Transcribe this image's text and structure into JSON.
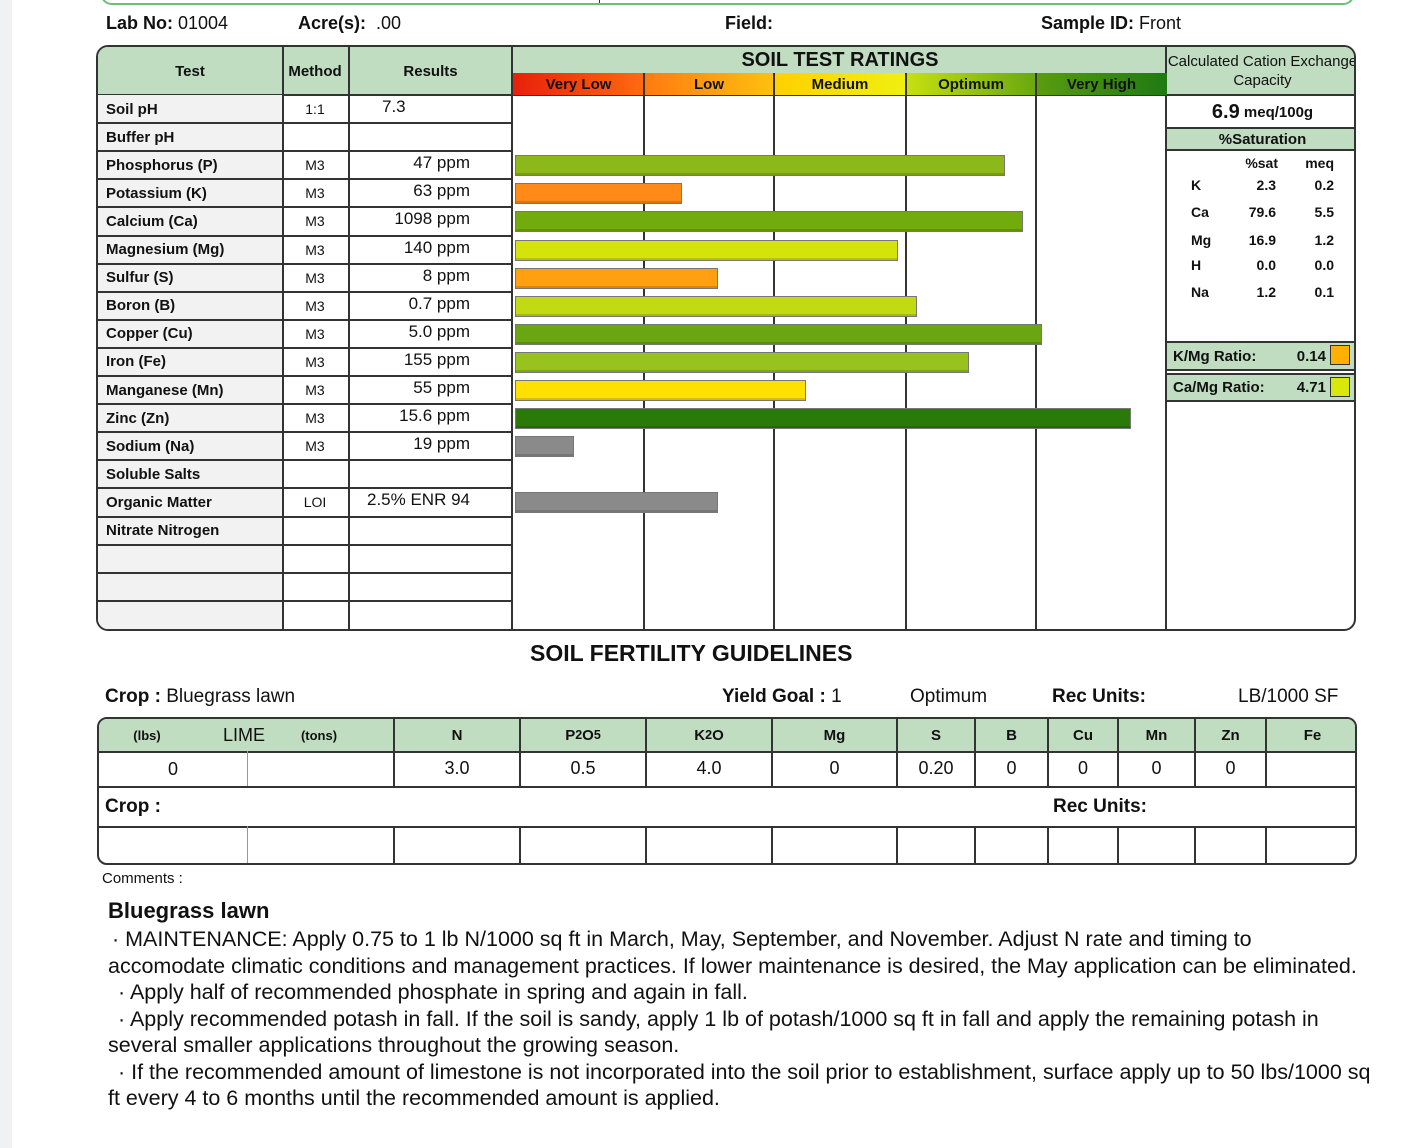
{
  "header": {
    "lab_no_label": "Lab No:",
    "lab_no": "01004",
    "acres_label": "Acre(s):",
    "acres": ".00",
    "field_label": "Field:",
    "field": "",
    "sample_label": "Sample ID:",
    "sample": "Front"
  },
  "table": {
    "col_test": "Test",
    "col_method": "Method",
    "col_results": "Results",
    "ratings_title": "SOIL TEST RATINGS",
    "scale": [
      "Very Low",
      "Low",
      "Medium",
      "Optimum",
      "Very High"
    ],
    "rows": [
      {
        "test": "Soil pH",
        "method": "1:1",
        "result": "7.3"
      },
      {
        "test": "Buffer pH",
        "method": "",
        "result": ""
      },
      {
        "test": "Phosphorus (P)",
        "method": "M3",
        "result": "47 ppm",
        "level": 0.752,
        "color": "#8cb81a"
      },
      {
        "test": "Potassium (K)",
        "method": "M3",
        "result": "63 ppm",
        "level": 0.256,
        "color": "#ff8a18"
      },
      {
        "test": "Calcium (Ca)",
        "method": "M3",
        "result": "1098 ppm",
        "level": 0.779,
        "color": "#72ab0e"
      },
      {
        "test": "Magnesium (Mg)",
        "method": "M3",
        "result": "140 ppm",
        "level": 0.587,
        "color": "#d4e40a"
      },
      {
        "test": "Sulfur (S)",
        "method": "M3",
        "result": "8 ppm",
        "level": 0.312,
        "color": "#ffa010"
      },
      {
        "test": "Boron (B)",
        "method": "M3",
        "result": "0.7 ppm",
        "level": 0.617,
        "color": "#c2da12"
      },
      {
        "test": "Copper (Cu)",
        "method": "M3",
        "result": "5.0 ppm",
        "level": 0.809,
        "color": "#6aa612"
      },
      {
        "test": "Iron (Fe)",
        "method": "M3",
        "result": "155 ppm",
        "level": 0.697,
        "color": "#98c21e"
      },
      {
        "test": "Manganese (Mn)",
        "method": "M3",
        "result": "55 ppm",
        "level": 0.447,
        "color": "#ffe000"
      },
      {
        "test": "Zinc (Zn)",
        "method": "M3",
        "result": "15.6 ppm",
        "level": 0.945,
        "color": "#2a7a0a"
      },
      {
        "test": "Sodium (Na)",
        "method": "M3",
        "result": "19 ppm",
        "level": 0.09,
        "color": "#8a8a8a"
      },
      {
        "test": "Soluble Salts",
        "method": "",
        "result": ""
      },
      {
        "test": "Organic Matter",
        "method": "LOI",
        "result": "2.5%  ENR  94",
        "level": 0.312,
        "color": "#8a8a8a"
      },
      {
        "test": "Nitrate Nitrogen",
        "method": "",
        "result": ""
      },
      {
        "test": "",
        "method": "",
        "result": ""
      },
      {
        "test": "",
        "method": "",
        "result": ""
      },
      {
        "test": "",
        "method": "",
        "result": ""
      }
    ]
  },
  "cec": {
    "title": "Calculated Cation Exchange Capacity",
    "value": "6.9",
    "unit": "meq/100g",
    "sat_title": "%Saturation",
    "col_sat": "%sat",
    "col_meq": "meq",
    "rows": [
      {
        "el": "K",
        "sat": "2.3",
        "meq": "0.2"
      },
      {
        "el": "Ca",
        "sat": "79.6",
        "meq": "5.5"
      },
      {
        "el": "Mg",
        "sat": "16.9",
        "meq": "1.2"
      },
      {
        "el": "H",
        "sat": "0.0",
        "meq": "0.0"
      },
      {
        "el": "Na",
        "sat": "1.2",
        "meq": "0.1"
      }
    ],
    "kmg_label": "K/Mg Ratio:",
    "kmg": "0.14",
    "kmg_color": "#ffb000",
    "camg_label": "Ca/Mg Ratio:",
    "camg": "4.71",
    "camg_color": "#d8e80a"
  },
  "guidelines": {
    "title": "SOIL FERTILITY GUIDELINES",
    "crop_label": "Crop :",
    "crop": "Bluegrass lawn",
    "yield_label": "Yield Goal :",
    "yield": "1",
    "yield_level": "Optimum",
    "rec_units_label": "Rec Units:",
    "rec_units": "LB/1000 SF",
    "lime_lbs": "(lbs)",
    "lime": "LIME",
    "lime_tons": "(tons)",
    "nutrients": [
      "N",
      "P2O5",
      "K2O",
      "Mg",
      "S",
      "B",
      "Cu",
      "Mn",
      "Zn",
      "Fe"
    ],
    "values": {
      "lime_lbs": "0",
      "lime_tons": "",
      "N": "3.0",
      "P2O5": "0.5",
      "K2O": "4.0",
      "Mg": "0",
      "S": "0.20",
      "B": "0",
      "Cu": "0",
      "Mn": "0",
      "Zn": "0",
      "Fe": ""
    },
    "crop2_label": "Crop :",
    "rec_units2_label": "Rec Units:"
  },
  "comments": {
    "label": "Comments :",
    "title": "Bluegrass lawn",
    "lines": [
      "· MAINTENANCE:  Apply 0.75 to 1 lb N/1000 sq ft in March, May, September, and November.  Adjust N rate and timing to accomodate climatic conditions and management practices.  If lower maintenance is desired, the May application can be eliminated.",
      "· Apply half of recommended phosphate in spring and again in fall.",
      "· Apply recommended potash in fall. If the soil is sandy, apply 1 lb of potash/1000 sq ft in fall and apply the remaining potash in several smaller applications throughout the growing season.",
      "· If the recommended amount of limestone is not incorporated into the soil prior to establishment, surface apply up to 50 lbs/1000 sq ft every 4 to 6 months until the recommended amount is applied."
    ]
  }
}
